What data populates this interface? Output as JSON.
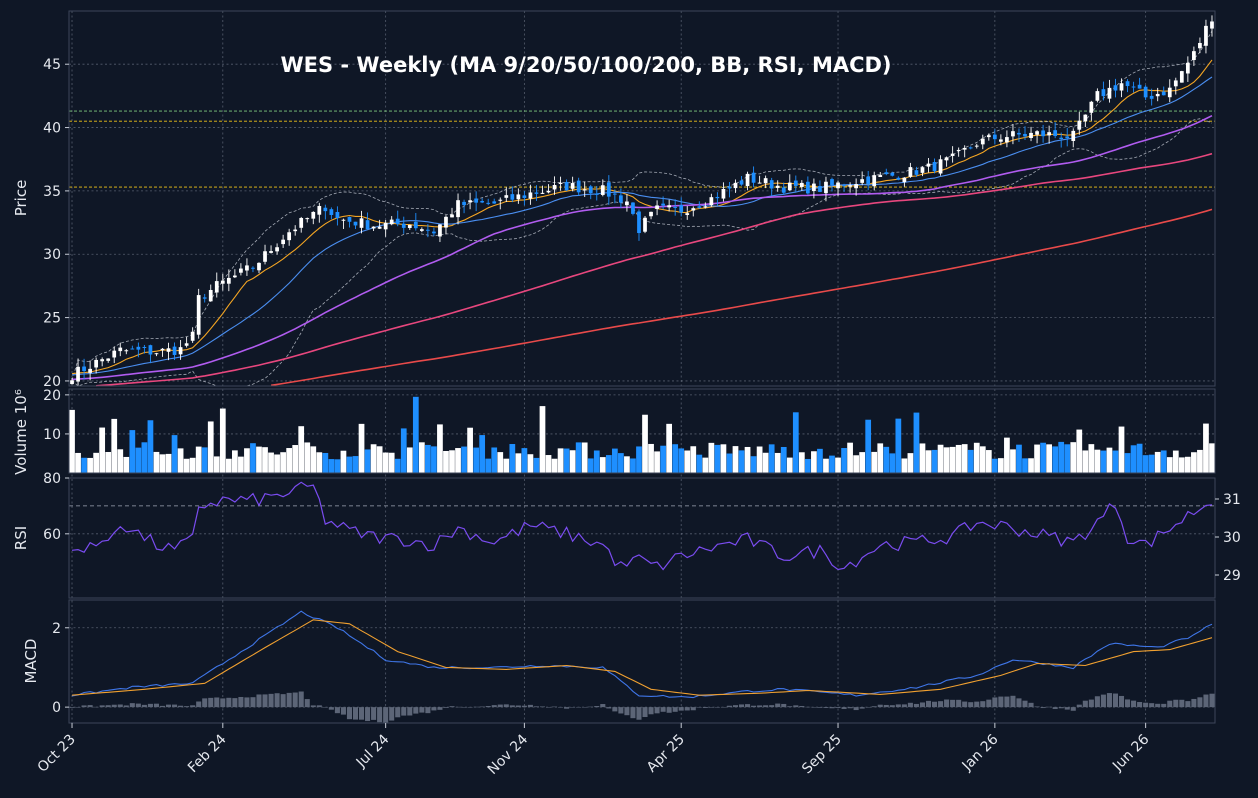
{
  "chart_data": {
    "type": "candlestick",
    "title": "WES  -  Weekly  (MA 9/20/50/100/200, BB, RSI, MACD)",
    "x_tick_labels": [
      "Oct 23",
      "Feb 24",
      "Jul 24",
      "Nov 24",
      "Apr 25",
      "Sep 25",
      "Jan 26",
      "Jun 26"
    ],
    "colors": {
      "background": "#0f1726",
      "up_candle": "#ffffff",
      "down_candle": "#1e8fff",
      "ma9": "#f5a623",
      "ma20": "#4a8ef0",
      "ma50": "#b15cf0",
      "ma100": "#e8477e",
      "ma200": "#e84a4a",
      "bollinger": "#c9ced8",
      "rsi": "#7a4cf0",
      "macd": "#3f76e8",
      "signal": "#f0a030",
      "histogram": "#5c6577"
    },
    "panels": {
      "price": {
        "ylabel": "Price",
        "yticks": [
          20,
          25,
          30,
          35,
          40,
          45
        ],
        "ylim": [
          19.6,
          49.2
        ],
        "horizontal_levels": [
          {
            "value": 41.3,
            "color": "#7fc97f"
          },
          {
            "value": 40.5,
            "color": "#f0c419"
          },
          {
            "value": 35.3,
            "color": "#f0c419"
          }
        ]
      },
      "volume": {
        "ylabel": "Volume  10⁶",
        "yticks": [
          10,
          20
        ],
        "ylim": [
          0,
          21.5
        ]
      },
      "rsi": {
        "ylabel": "RSI",
        "yticks": [
          60,
          80
        ],
        "ylim": [
          37,
          80
        ],
        "levels": [
          30,
          70
        ],
        "right_ticks": [
          29,
          30,
          31
        ]
      },
      "macd": {
        "ylabel": "MACD",
        "yticks": [
          0,
          2
        ],
        "ylim": [
          -0.4,
          2.7
        ]
      }
    },
    "series_anchors": {
      "close": [
        [
          0,
          20.5
        ],
        [
          8,
          22.4
        ],
        [
          14,
          22.3
        ],
        [
          18,
          22.5
        ],
        [
          20,
          23.5
        ],
        [
          21,
          26.5
        ],
        [
          24,
          27.5
        ],
        [
          30,
          29
        ],
        [
          36,
          31.8
        ],
        [
          42,
          33.8
        ],
        [
          44,
          32.8
        ],
        [
          50,
          32.3
        ],
        [
          56,
          32.4
        ],
        [
          60,
          31.8
        ],
        [
          64,
          33.9
        ],
        [
          70,
          34
        ],
        [
          76,
          34.8
        ],
        [
          82,
          35.4
        ],
        [
          88,
          35
        ],
        [
          92,
          34.2
        ],
        [
          94,
          32
        ],
        [
          97,
          33.5
        ],
        [
          101,
          33.5
        ],
        [
          106,
          34.4
        ],
        [
          112,
          36
        ],
        [
          118,
          35.3
        ],
        [
          124,
          35.2
        ],
        [
          130,
          35.8
        ],
        [
          136,
          36.2
        ],
        [
          142,
          36.8
        ],
        [
          146,
          37.5
        ],
        [
          150,
          38.8
        ],
        [
          154,
          39.3
        ],
        [
          160,
          39.5
        ],
        [
          166,
          39.3
        ],
        [
          170,
          42.5
        ],
        [
          174,
          43.5
        ],
        [
          178,
          42.4
        ],
        [
          182,
          43
        ],
        [
          186,
          45.8
        ],
        [
          189,
          48.8
        ]
      ],
      "rsi": [
        [
          0,
          53
        ],
        [
          3,
          57
        ],
        [
          5,
          55
        ],
        [
          8,
          64
        ],
        [
          11,
          60
        ],
        [
          14,
          56
        ],
        [
          17,
          54
        ],
        [
          20,
          58
        ],
        [
          21,
          70
        ],
        [
          25,
          72
        ],
        [
          30,
          72
        ],
        [
          33,
          73
        ],
        [
          38,
          76
        ],
        [
          40,
          77
        ],
        [
          42,
          65
        ],
        [
          46,
          61
        ],
        [
          50,
          59
        ],
        [
          55,
          58
        ],
        [
          60,
          56
        ],
        [
          64,
          62
        ],
        [
          70,
          57
        ],
        [
          76,
          63
        ],
        [
          82,
          60
        ],
        [
          88,
          56
        ],
        [
          91,
          48
        ],
        [
          94,
          51
        ],
        [
          97,
          48
        ],
        [
          101,
          52
        ],
        [
          106,
          55
        ],
        [
          112,
          58
        ],
        [
          118,
          52
        ],
        [
          124,
          54
        ],
        [
          128,
          48
        ],
        [
          134,
          56
        ],
        [
          140,
          57
        ],
        [
          146,
          59
        ],
        [
          150,
          64
        ],
        [
          154,
          63
        ],
        [
          160,
          60
        ],
        [
          166,
          57
        ],
        [
          170,
          64
        ],
        [
          173,
          71
        ],
        [
          175,
          59
        ],
        [
          178,
          56
        ],
        [
          182,
          62
        ],
        [
          186,
          68
        ],
        [
          189,
          72
        ]
      ],
      "macd": [
        [
          0,
          0.3
        ],
        [
          10,
          0.5
        ],
        [
          20,
          0.6
        ],
        [
          30,
          1.6
        ],
        [
          38,
          2.4
        ],
        [
          44,
          2.0
        ],
        [
          52,
          1.2
        ],
        [
          60,
          1.0
        ],
        [
          70,
          1.0
        ],
        [
          78,
          1.05
        ],
        [
          88,
          1.0
        ],
        [
          94,
          0.3
        ],
        [
          102,
          0.25
        ],
        [
          112,
          0.4
        ],
        [
          118,
          0.45
        ],
        [
          130,
          0.3
        ],
        [
          140,
          0.5
        ],
        [
          150,
          0.8
        ],
        [
          156,
          1.2
        ],
        [
          166,
          1.0
        ],
        [
          172,
          1.6
        ],
        [
          180,
          1.5
        ],
        [
          186,
          1.8
        ],
        [
          189,
          2.1
        ]
      ],
      "signal": [
        [
          0,
          0.3
        ],
        [
          12,
          0.45
        ],
        [
          22,
          0.6
        ],
        [
          32,
          1.5
        ],
        [
          40,
          2.2
        ],
        [
          46,
          2.1
        ],
        [
          54,
          1.4
        ],
        [
          62,
          1.0
        ],
        [
          72,
          0.95
        ],
        [
          82,
          1.05
        ],
        [
          90,
          0.9
        ],
        [
          96,
          0.45
        ],
        [
          104,
          0.3
        ],
        [
          114,
          0.35
        ],
        [
          122,
          0.42
        ],
        [
          134,
          0.32
        ],
        [
          144,
          0.45
        ],
        [
          154,
          0.8
        ],
        [
          160,
          1.1
        ],
        [
          168,
          1.05
        ],
        [
          176,
          1.4
        ],
        [
          182,
          1.45
        ],
        [
          189,
          1.75
        ]
      ]
    }
  }
}
